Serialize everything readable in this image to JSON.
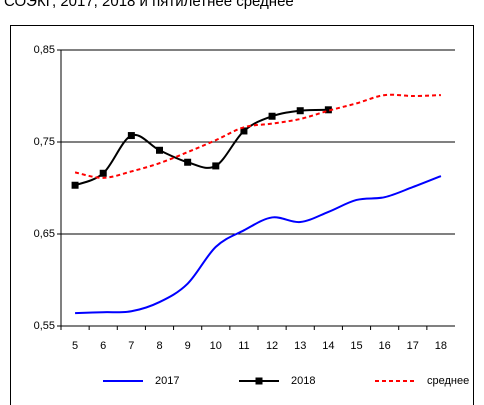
{
  "chart_data": {
    "type": "line",
    "title": "СОЭКГ, 2017, 2018 и пятилетнее среднее",
    "categories": [
      "5",
      "6",
      "7",
      "8",
      "9",
      "10",
      "11",
      "12",
      "13",
      "14",
      "15",
      "16",
      "17",
      "18"
    ],
    "series": [
      {
        "name": "2017",
        "color": "#0000ff",
        "dash": "solid",
        "marker": "none",
        "values": [
          0.564,
          0.565,
          0.566,
          0.576,
          0.596,
          0.636,
          0.654,
          0.668,
          0.663,
          0.674,
          0.687,
          0.69,
          0.701,
          0.713
        ]
      },
      {
        "name": "2018",
        "color": "#000000",
        "dash": "solid",
        "marker": "square",
        "values": [
          0.703,
          0.716,
          0.757,
          0.741,
          0.728,
          0.724,
          0.762,
          0.778,
          0.784,
          0.785,
          null,
          null,
          null,
          null
        ]
      },
      {
        "name": "среднее",
        "color": "#ff0000",
        "dash": "dashed",
        "marker": "none",
        "values": [
          0.717,
          0.711,
          0.718,
          0.727,
          0.739,
          0.752,
          0.766,
          0.77,
          0.775,
          0.784,
          0.792,
          0.801,
          0.8,
          0.801
        ]
      }
    ],
    "ylim": [
      0.55,
      0.85
    ],
    "yticks": [
      {
        "value": 0.55,
        "label": "0,55"
      },
      {
        "value": 0.65,
        "label": "0,65"
      },
      {
        "value": 0.75,
        "label": "0,75"
      },
      {
        "value": 0.85,
        "label": "0,85"
      }
    ],
    "grid": true,
    "legend": "bottom"
  }
}
